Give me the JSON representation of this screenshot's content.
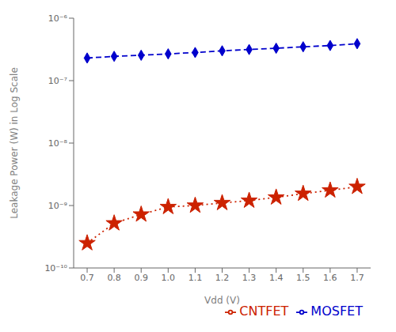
{
  "chart_data": {
    "type": "line",
    "x_label": "Vdd (V)",
    "y_label": "Leakage Power (W) in Log Scale",
    "x": [
      0.7,
      0.8,
      0.9,
      1.0,
      1.1,
      1.2,
      1.3,
      1.4,
      1.5,
      1.6,
      1.7
    ],
    "series": [
      {
        "name": "CNTFET",
        "color": "#cc2200",
        "line_style": "dotted",
        "marker": "star",
        "values": [
          2.5e-10,
          5.2e-10,
          7.2e-10,
          9.5e-10,
          1e-09,
          1.1e-09,
          1.2e-09,
          1.35e-09,
          1.55e-09,
          1.75e-09,
          2e-09
        ]
      },
      {
        "name": "MOSFET",
        "color": "#0000cc",
        "line_style": "dashed",
        "marker": "diamond",
        "values": [
          2.3e-07,
          2.45e-07,
          2.55e-07,
          2.68e-07,
          2.82e-07,
          3e-07,
          3.15e-07,
          3.3e-07,
          3.48e-07,
          3.65e-07,
          3.9e-07
        ]
      }
    ],
    "xlim": [
      0.65,
      1.75
    ],
    "xticks": [
      0.7,
      0.8,
      0.9,
      {
        "value": 1.0,
        "label": "1.0"
      },
      1.1,
      1.2,
      1.3,
      1.4,
      1.5,
      1.6,
      1.7
    ],
    "ylim": [
      1e-10,
      1e-06
    ],
    "yticks": [
      {
        "value": 1e-10,
        "label": "10⁻¹⁰"
      },
      {
        "value": 1e-09,
        "label": "10⁻⁹"
      },
      {
        "value": 1e-08,
        "label": "10⁻⁸"
      },
      {
        "value": 1e-07,
        "label": "10⁻⁷"
      },
      {
        "value": 1e-06,
        "label": "10⁻⁶"
      }
    ],
    "log": "y",
    "grid": false,
    "legend": "lower right"
  }
}
